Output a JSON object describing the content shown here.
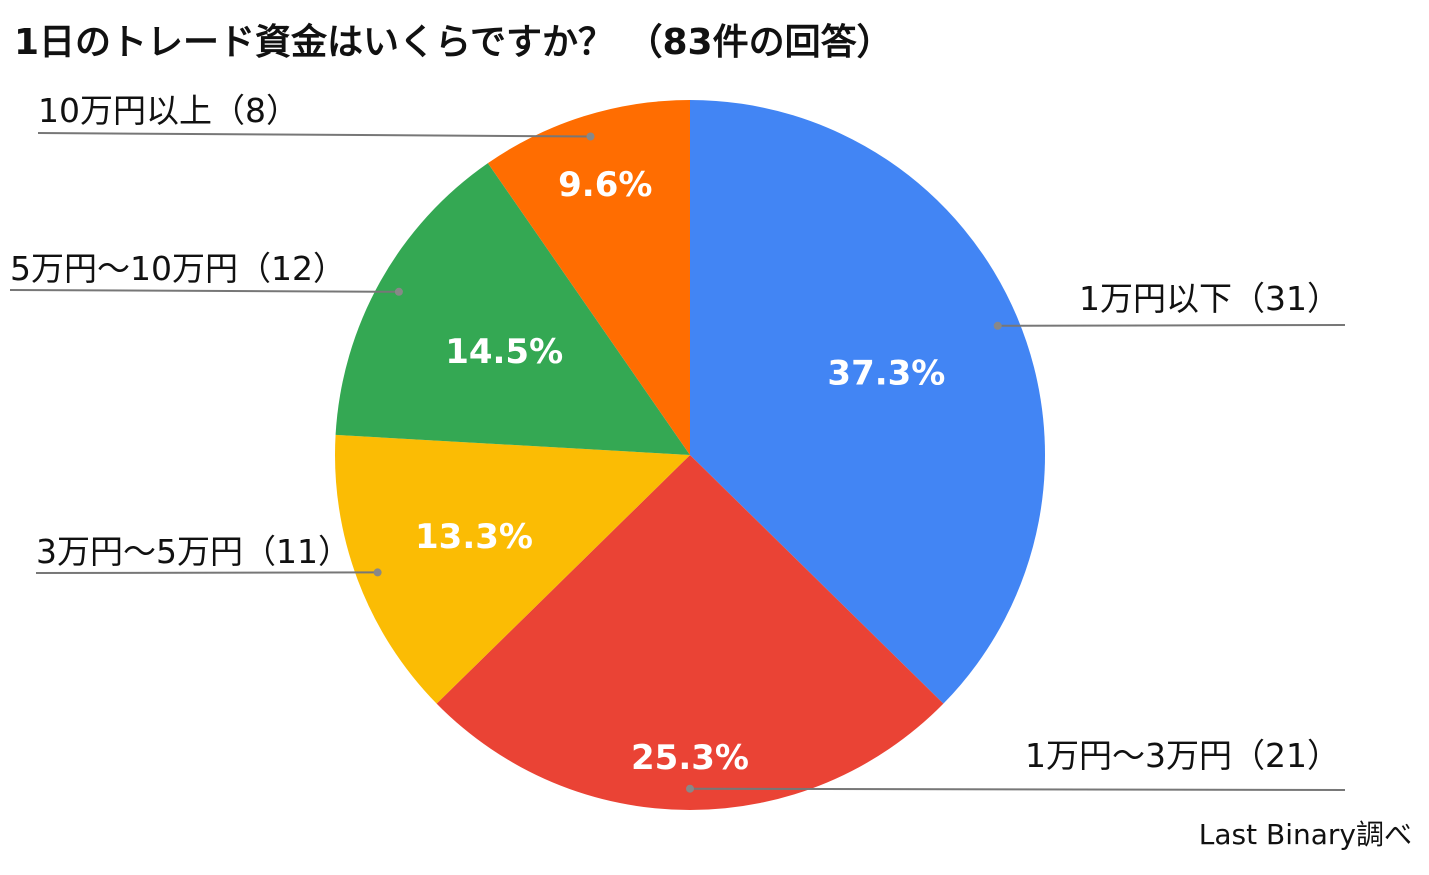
{
  "chart_data": {
    "type": "pie",
    "title": "1日のトレード資金はいくらですか？ （83件の回答）",
    "source": "Last Binary調べ",
    "slices": [
      {
        "category": "1万円以下（31）",
        "value": 31,
        "percent_label": "37.3%",
        "color": "#4285F4"
      },
      {
        "category": "1万円〜3万円（21）",
        "value": 21,
        "percent_label": "25.3%",
        "color": "#EA4335"
      },
      {
        "category": "3万円〜5万円（11）",
        "value": 11,
        "percent_label": "13.3%",
        "color": "#FBBC04"
      },
      {
        "category": "5万円〜10万円（12）",
        "value": 12,
        "percent_label": "14.5%",
        "color": "#34A853"
      },
      {
        "category": "10万円以上（8）",
        "value": 8,
        "percent_label": "9.6%",
        "color": "#FF6D01"
      }
    ]
  }
}
